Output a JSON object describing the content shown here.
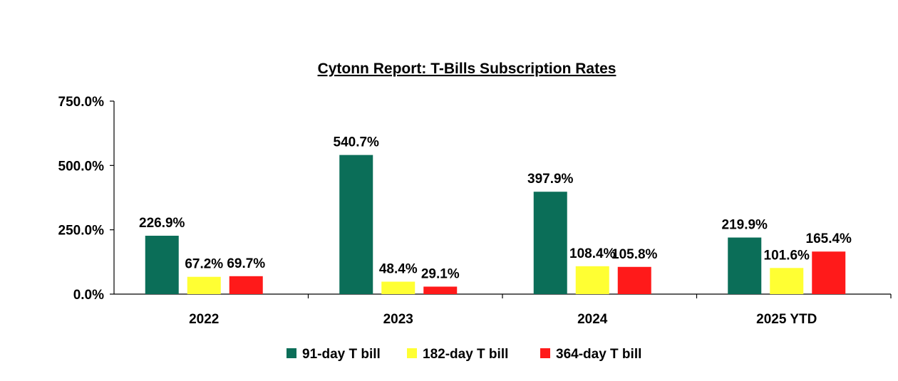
{
  "chart_data": {
    "type": "bar",
    "title": "Cytonn Report: T-Bills Subscription Rates",
    "xlabel": "",
    "ylabel": "",
    "ylim": [
      0,
      750
    ],
    "yticks": [
      "0.0%",
      "250.0%",
      "500.0%",
      "750.0%"
    ],
    "ytick_values": [
      0,
      250,
      500,
      750
    ],
    "categories": [
      "2022",
      "2023",
      "2024",
      "2025 YTD"
    ],
    "series": [
      {
        "name": "91-day T bill",
        "color": "#0b6e58",
        "values": [
          226.9,
          540.7,
          397.9,
          219.9
        ],
        "labels": [
          "226.9%",
          "540.7%",
          "397.9%",
          "219.9%"
        ]
      },
      {
        "name": "182-day T bill",
        "color": "#ffff33",
        "values": [
          67.2,
          48.4,
          108.4,
          101.6
        ],
        "labels": [
          "67.2%",
          "48.4%",
          "108.4%",
          "101.6%"
        ]
      },
      {
        "name": "364-day T bill",
        "color": "#ff1a1a",
        "values": [
          69.7,
          29.1,
          105.8,
          165.4
        ],
        "labels": [
          "69.7%",
          "29.1%",
          "105.8%",
          "165.4%"
        ]
      }
    ],
    "grid": false,
    "legend_position": "bottom"
  }
}
